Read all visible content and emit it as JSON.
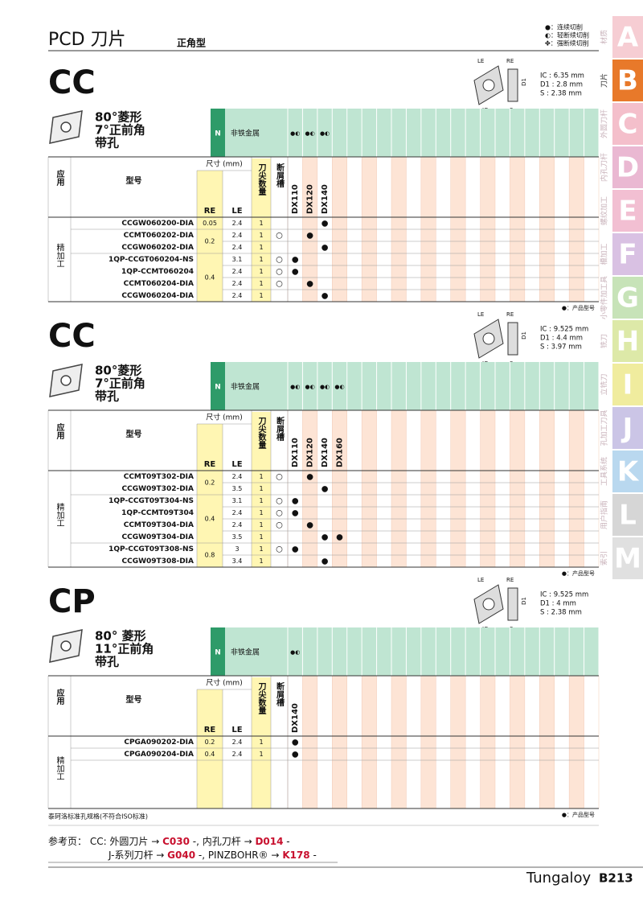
{
  "header": {
    "title": "PCD 刀片",
    "subtitle": "正角型",
    "legend": [
      "●：连续切削",
      "◐：轻断续切削",
      "✤：强断续切削"
    ]
  },
  "tabs": [
    {
      "letter": "A",
      "label": "材质",
      "color": "#f6cdd3"
    },
    {
      "letter": "B",
      "label": "刀片",
      "color": "#e8792a",
      "active": true
    },
    {
      "letter": "C",
      "label": "外圆刀杆",
      "color": "#f4bfcb"
    },
    {
      "letter": "D",
      "label": "内孔刀杆",
      "color": "#eab8d2"
    },
    {
      "letter": "E",
      "label": "螺纹加工",
      "color": "#f2bfd2"
    },
    {
      "letter": "F",
      "label": "槽加工",
      "color": "#d9c1e3"
    },
    {
      "letter": "G",
      "label": "小零件加工具",
      "color": "#c7e3b8"
    },
    {
      "letter": "H",
      "label": "铣刀",
      "color": "#dde9a8"
    },
    {
      "letter": "I",
      "label": "立铣刀",
      "color": "#f0ec9e"
    },
    {
      "letter": "J",
      "label": "孔加工刀具",
      "color": "#cbc5e6"
    },
    {
      "letter": "K",
      "label": "工具系统",
      "color": "#b9d8ef"
    },
    {
      "letter": "L",
      "label": "用户指南",
      "color": "#d6d6d6"
    },
    {
      "letter": "M",
      "label": "索引",
      "color": "#e0e0e0"
    }
  ],
  "table_header": {
    "app": "应用",
    "model": "型号",
    "size": "尺寸 (mm)",
    "re": "RE",
    "le": "LE",
    "count": "刀尖数量",
    "chip": "断屑槽"
  },
  "application": "精加工",
  "diagram": {
    "le": "LE",
    "re": "RE",
    "ic": "IC",
    "s": "S",
    "d1": "D1"
  },
  "sections": [
    {
      "code": "CC",
      "shape": [
        "80°菱形",
        "7°正前角",
        "带孔"
      ],
      "dims": [
        "IC : 6.35 mm",
        "D1 : 2.8 mm",
        "S  : 2.38 mm"
      ],
      "material": {
        "group": "N",
        "name": "非铁金属"
      },
      "grades": [
        "DX110",
        "DX120",
        "DX140"
      ],
      "grade_symbols": [
        "●◐",
        "●◐",
        "●◐"
      ],
      "groups": [
        {
          "re": "0.05",
          "rows": [
            {
              "model": "CCGW060200-DIA",
              "le": "2.4",
              "count": "1",
              "chip": null,
              "marks": [
                null,
                null,
                "●"
              ]
            }
          ]
        },
        {
          "re": "0.2",
          "rows": [
            {
              "model": "CCMT060202-DIA",
              "le": "2.4",
              "count": "1",
              "chip": "○",
              "marks": [
                null,
                "●",
                null
              ]
            },
            {
              "model": "CCGW060202-DIA",
              "le": "2.4",
              "count": "1",
              "chip": null,
              "marks": [
                null,
                null,
                "●"
              ]
            }
          ]
        },
        {
          "re": "0.4",
          "rows": [
            {
              "model": "1QP-CCGT060204-NS",
              "le": "3.1",
              "count": "1",
              "chip": "○",
              "marks": [
                "●",
                null,
                null
              ]
            },
            {
              "model": "1QP-CCMT060204",
              "le": "2.4",
              "count": "1",
              "chip": "○",
              "marks": [
                "●",
                null,
                null
              ]
            },
            {
              "model": "CCMT060204-DIA",
              "le": "2.4",
              "count": "1",
              "chip": "○",
              "marks": [
                null,
                "●",
                null
              ]
            },
            {
              "model": "CCGW060204-DIA",
              "le": "2.4",
              "count": "1",
              "chip": null,
              "marks": [
                null,
                null,
                "●"
              ]
            }
          ]
        }
      ],
      "footnote": "●：产品型号"
    },
    {
      "code": "CC",
      "shape": [
        "80°菱形",
        "7°正前角",
        "带孔"
      ],
      "dims": [
        "IC : 9.525 mm",
        "D1 : 4.4 mm",
        "S  : 3.97 mm"
      ],
      "material": {
        "group": "N",
        "name": "非铁金属"
      },
      "grades": [
        "DX110",
        "DX120",
        "DX140",
        "DX160"
      ],
      "grade_symbols": [
        "●◐",
        "●◐",
        "●◐",
        "●◐"
      ],
      "groups": [
        {
          "re": "0.2",
          "rows": [
            {
              "model": "CCMT09T302-DIA",
              "le": "2.4",
              "count": "1",
              "chip": "○",
              "marks": [
                null,
                "●",
                null,
                null
              ]
            },
            {
              "model": "CCGW09T302-DIA",
              "le": "3.5",
              "count": "1",
              "chip": null,
              "marks": [
                null,
                null,
                "●",
                null
              ]
            }
          ]
        },
        {
          "re": "0.4",
          "rows": [
            {
              "model": "1QP-CCGT09T304-NS",
              "le": "3.1",
              "count": "1",
              "chip": "○",
              "marks": [
                "●",
                null,
                null,
                null
              ]
            },
            {
              "model": "1QP-CCMT09T304",
              "le": "2.4",
              "count": "1",
              "chip": "○",
              "marks": [
                "●",
                null,
                null,
                null
              ]
            },
            {
              "model": "CCMT09T304-DIA",
              "le": "2.4",
              "count": "1",
              "chip": "○",
              "marks": [
                null,
                "●",
                null,
                null
              ]
            },
            {
              "model": "CCGW09T304-DIA",
              "le": "3.5",
              "count": "1",
              "chip": null,
              "marks": [
                null,
                null,
                "●",
                "●"
              ]
            }
          ]
        },
        {
          "re": "0.8",
          "rows": [
            {
              "model": "1QP-CCGT09T308-NS",
              "le": "3",
              "count": "1",
              "chip": "○",
              "marks": [
                "●",
                null,
                null,
                null
              ]
            },
            {
              "model": "CCGW09T308-DIA",
              "le": "3.4",
              "count": "1",
              "chip": null,
              "marks": [
                null,
                null,
                "●",
                null
              ]
            }
          ]
        }
      ],
      "footnote": "●：产品型号"
    },
    {
      "code": "CP",
      "shape": [
        "80° 菱形",
        "11°正前角",
        "带孔"
      ],
      "dims": [
        "IC : 9.525 mm",
        "D1 : 4 mm",
        "S  : 2.38 mm"
      ],
      "material": {
        "group": "N",
        "name": "非铁金属"
      },
      "grades": [
        "DX140"
      ],
      "grade_symbols": [
        "●◐"
      ],
      "groups": [
        {
          "re": "0.2",
          "rows": [
            {
              "model": "CPGA090202-DIA",
              "le": "2.4",
              "count": "1",
              "chip": null,
              "marks": [
                "●"
              ]
            }
          ]
        },
        {
          "re": "0.4",
          "rows": [
            {
              "model": "CPGA090204-DIA",
              "le": "2.4",
              "count": "1",
              "chip": null,
              "marks": [
                "●"
              ]
            }
          ]
        }
      ],
      "footnote": "●：产品型号"
    }
  ],
  "note": "泰珂洛标准孔规格(不符合ISO标准)",
  "refs": [
    [
      {
        "text": "参考页：  CC: 外圆刀片 → "
      },
      {
        "text": "C030",
        "color": "#c8102e"
      },
      {
        "text": " -, 内孔刀杆 → "
      },
      {
        "text": "D014",
        "color": "#c8102e"
      },
      {
        "text": " -"
      }
    ],
    [
      {
        "text": "J-系列刀杆 → "
      },
      {
        "text": "G040",
        "color": "#c8102e"
      },
      {
        "text": " -, PINZBOHR® → "
      },
      {
        "text": "K178",
        "color": "#c8102e"
      },
      {
        "text": " -"
      }
    ]
  ],
  "brand": "Tungaloy",
  "page": "B213"
}
